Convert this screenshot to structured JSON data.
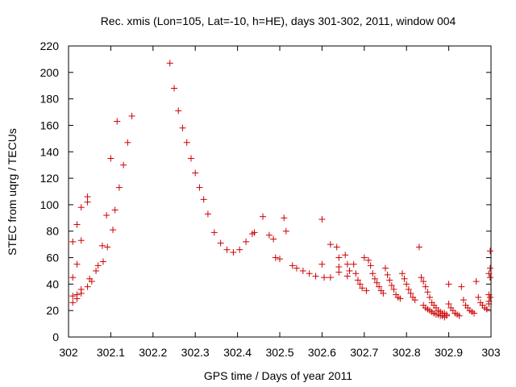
{
  "chart_data": {
    "type": "scatter",
    "title": "Rec. xmis (Lon=105, Lat=-10, h=HE), days 301-302, 2011, window 004",
    "xlabel": "GPS time / Days of year 2011",
    "ylabel": "STEC from uqrg / TECUs",
    "xlim": [
      302,
      303
    ],
    "ylim": [
      0,
      220
    ],
    "x_ticks": [
      302,
      302.1,
      302.2,
      302.3,
      302.4,
      302.5,
      302.6,
      302.7,
      302.8,
      302.9,
      303
    ],
    "x_tick_labels": [
      "302",
      "302.1",
      "302.2",
      "302.3",
      "302.4",
      "302.5",
      "302.6",
      "302.7",
      "302.8",
      "302.9",
      "303"
    ],
    "y_ticks": [
      0,
      20,
      40,
      60,
      80,
      100,
      120,
      140,
      160,
      180,
      200,
      220
    ],
    "y_tick_labels": [
      "0",
      "20",
      "40",
      "60",
      "80",
      "100",
      "120",
      "140",
      "160",
      "180",
      "200",
      "220"
    ],
    "grid": false,
    "legend": "none",
    "marker": "+",
    "color": "#cc0000",
    "series": [
      {
        "name": "STEC",
        "points": [
          [
            302.01,
            45
          ],
          [
            302.01,
            72
          ],
          [
            302.01,
            31
          ],
          [
            302.01,
            26
          ],
          [
            302.02,
            85
          ],
          [
            302.02,
            55
          ],
          [
            302.02,
            32
          ],
          [
            302.02,
            29
          ],
          [
            302.03,
            73
          ],
          [
            302.03,
            98
          ],
          [
            302.03,
            36
          ],
          [
            302.03,
            33
          ],
          [
            302.045,
            106
          ],
          [
            302.045,
            102
          ],
          [
            302.045,
            38
          ],
          [
            302.05,
            44
          ],
          [
            302.055,
            42
          ],
          [
            302.065,
            50
          ],
          [
            302.07,
            54
          ],
          [
            302.08,
            69
          ],
          [
            302.082,
            57
          ],
          [
            302.09,
            92
          ],
          [
            302.092,
            68
          ],
          [
            302.1,
            135
          ],
          [
            302.105,
            81
          ],
          [
            302.11,
            96
          ],
          [
            302.115,
            163
          ],
          [
            302.12,
            113
          ],
          [
            302.13,
            130
          ],
          [
            302.14,
            147
          ],
          [
            302.15,
            167
          ],
          [
            302.24,
            207
          ],
          [
            302.25,
            188
          ],
          [
            302.26,
            171
          ],
          [
            302.27,
            158
          ],
          [
            302.28,
            147
          ],
          [
            302.29,
            135
          ],
          [
            302.3,
            124
          ],
          [
            302.31,
            113
          ],
          [
            302.32,
            104
          ],
          [
            302.33,
            93
          ],
          [
            302.345,
            79
          ],
          [
            302.36,
            71
          ],
          [
            302.375,
            66
          ],
          [
            302.39,
            64
          ],
          [
            302.405,
            66
          ],
          [
            302.42,
            72
          ],
          [
            302.435,
            78
          ],
          [
            302.44,
            79
          ],
          [
            302.46,
            91
          ],
          [
            302.475,
            77
          ],
          [
            302.485,
            74
          ],
          [
            302.49,
            60
          ],
          [
            302.5,
            59
          ],
          [
            302.51,
            90
          ],
          [
            302.515,
            80
          ],
          [
            302.53,
            54
          ],
          [
            302.54,
            52
          ],
          [
            302.555,
            50
          ],
          [
            302.57,
            48
          ],
          [
            302.585,
            46
          ],
          [
            302.6,
            89
          ],
          [
            302.6,
            55
          ],
          [
            302.605,
            45
          ],
          [
            302.62,
            70
          ],
          [
            302.62,
            45
          ],
          [
            302.635,
            68
          ],
          [
            302.64,
            60
          ],
          [
            302.64,
            53
          ],
          [
            302.64,
            49
          ],
          [
            302.655,
            62
          ],
          [
            302.66,
            55
          ],
          [
            302.665,
            50
          ],
          [
            302.66,
            46
          ],
          [
            302.675,
            55
          ],
          [
            302.68,
            48
          ],
          [
            302.685,
            43
          ],
          [
            302.69,
            40
          ],
          [
            302.695,
            37
          ],
          [
            302.7,
            60
          ],
          [
            302.705,
            35
          ],
          [
            302.71,
            58
          ],
          [
            302.715,
            54
          ],
          [
            302.72,
            48
          ],
          [
            302.725,
            44
          ],
          [
            302.73,
            41
          ],
          [
            302.735,
            38
          ],
          [
            302.74,
            35
          ],
          [
            302.745,
            33
          ],
          [
            302.75,
            52
          ],
          [
            302.755,
            47
          ],
          [
            302.76,
            43
          ],
          [
            302.765,
            39
          ],
          [
            302.77,
            36
          ],
          [
            302.775,
            32
          ],
          [
            302.78,
            30
          ],
          [
            302.785,
            29
          ],
          [
            302.79,
            48
          ],
          [
            302.795,
            44
          ],
          [
            302.8,
            40
          ],
          [
            302.805,
            36
          ],
          [
            302.81,
            33
          ],
          [
            302.815,
            30
          ],
          [
            302.82,
            28
          ],
          [
            302.83,
            68
          ],
          [
            302.835,
            45
          ],
          [
            302.84,
            42
          ],
          [
            302.845,
            38
          ],
          [
            302.85,
            34
          ],
          [
            302.855,
            30
          ],
          [
            302.86,
            26
          ],
          [
            302.865,
            24
          ],
          [
            302.87,
            22
          ],
          [
            302.875,
            20
          ],
          [
            302.88,
            19
          ],
          [
            302.885,
            18
          ],
          [
            302.89,
            18
          ],
          [
            302.895,
            17
          ],
          [
            302.84,
            24
          ],
          [
            302.845,
            22
          ],
          [
            302.85,
            21
          ],
          [
            302.855,
            20
          ],
          [
            302.86,
            19
          ],
          [
            302.865,
            18
          ],
          [
            302.87,
            17
          ],
          [
            302.875,
            17
          ],
          [
            302.88,
            16
          ],
          [
            302.885,
            16
          ],
          [
            302.89,
            15
          ],
          [
            302.895,
            16
          ],
          [
            302.9,
            40
          ],
          [
            302.9,
            25
          ],
          [
            302.905,
            22
          ],
          [
            302.91,
            20
          ],
          [
            302.915,
            18
          ],
          [
            302.92,
            17
          ],
          [
            302.925,
            16
          ],
          [
            302.93,
            38
          ],
          [
            302.935,
            28
          ],
          [
            302.94,
            24
          ],
          [
            302.945,
            22
          ],
          [
            302.95,
            20
          ],
          [
            302.955,
            19
          ],
          [
            302.96,
            18
          ],
          [
            302.965,
            42
          ],
          [
            302.97,
            30
          ],
          [
            302.975,
            26
          ],
          [
            302.98,
            24
          ],
          [
            302.985,
            22
          ],
          [
            302.99,
            21
          ],
          [
            302.995,
            48
          ],
          [
            302.995,
            32
          ],
          [
            302.995,
            27
          ],
          [
            302.995,
            25
          ],
          [
            302.998,
            65
          ],
          [
            302.998,
            52
          ],
          [
            302.998,
            45
          ],
          [
            302.998,
            30
          ]
        ]
      }
    ]
  }
}
